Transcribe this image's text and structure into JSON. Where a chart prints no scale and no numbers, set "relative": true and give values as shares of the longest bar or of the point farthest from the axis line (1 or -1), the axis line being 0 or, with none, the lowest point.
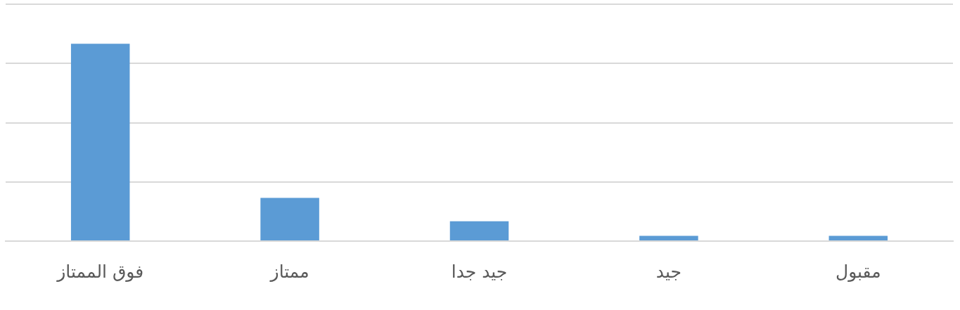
{
  "chart_data": {
    "type": "bar",
    "relative": true,
    "categories": [
      "فوق الممتاز",
      "ممتاز",
      "جيد جدا",
      "جيد",
      "مقبول"
    ],
    "values": [
      1,
      0.219,
      0.101,
      0.027,
      0.027
    ],
    "color": "#5b9bd5",
    "grid": "y"
  }
}
